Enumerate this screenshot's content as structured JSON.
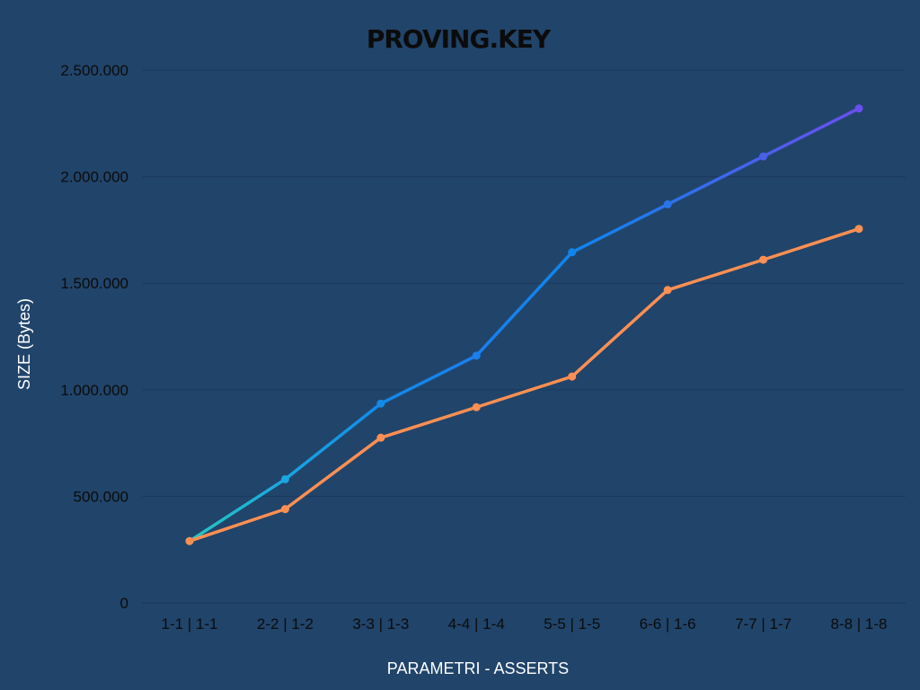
{
  "chart_data": {
    "type": "line",
    "title": "PROVING.KEY",
    "xlabel": "PARAMETRI - ASSERTS",
    "ylabel": "SIZE (Bytes)",
    "categories": [
      "1-1 | 1-1",
      "2-2 | 1-2",
      "3-3 | 1-3",
      "4-4 | 1-4",
      "5-5 | 1-5",
      "6-6 | 1-6",
      "7-7 | 1-7",
      "8-8 | 1-8"
    ],
    "ylim": [
      0,
      2500000
    ],
    "yticks": [
      0,
      500000,
      1000000,
      1500000,
      2000000,
      2500000
    ],
    "ytick_labels": [
      "0",
      "500.000",
      "1.000.000",
      "1.500.000",
      "2.000.000",
      "2.500.000"
    ],
    "grid": "horizontal",
    "series": [
      {
        "values": [
          290000,
          580000,
          935000,
          1160000,
          1645000,
          1870000,
          2095000,
          2320000
        ],
        "color": "gradient",
        "colors": [
          "#25c7c0",
          "#1aa6e0",
          "#128ae8",
          "#1a7ff0",
          "#0f86ee",
          "#2a73ec",
          "#4a60eb",
          "#6a4ff0"
        ]
      },
      {
        "values": [
          290000,
          440000,
          775000,
          918000,
          1062000,
          1468000,
          1610000,
          1755000
        ],
        "color": "#fd8f52"
      }
    ]
  }
}
